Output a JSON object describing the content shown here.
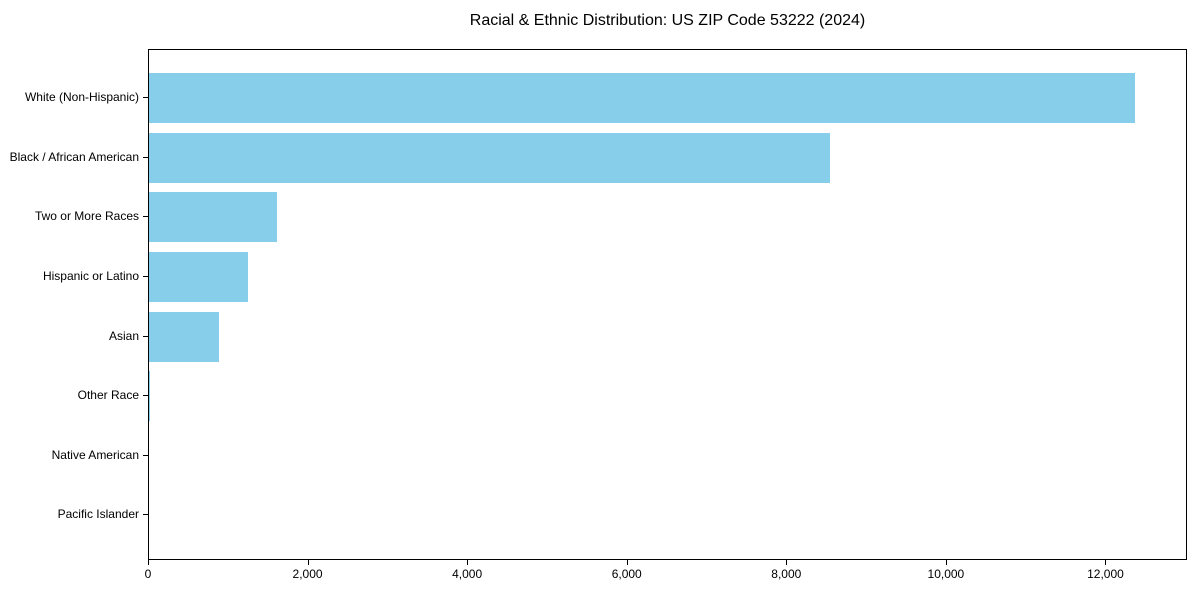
{
  "title": "Racial & Ethnic Distribution: US ZIP Code 53222 (2024)",
  "chart_data": {
    "type": "bar",
    "orientation": "horizontal",
    "title": "Racial & Ethnic Distribution: US ZIP Code 53222 (2024)",
    "categories": [
      "White (Non-Hispanic)",
      "Black / African American",
      "Two or More Races",
      "Hispanic or Latino",
      "Asian",
      "Other Race",
      "Native American",
      "Pacific Islander"
    ],
    "values": [
      12360,
      8530,
      1600,
      1245,
      880,
      15,
      0,
      0
    ],
    "xlabel": "",
    "ylabel": "",
    "xlim": [
      0,
      13022
    ],
    "x_ticks": [
      0,
      2000,
      4000,
      6000,
      8000,
      10000,
      12000
    ],
    "x_tick_labels": [
      "0",
      "2,000",
      "4,000",
      "6,000",
      "8,000",
      "10,000",
      "12,000"
    ],
    "bar_color": "#87CEEB",
    "grid": false,
    "legend": "none",
    "frame": "full-box"
  },
  "colors": {
    "bar": "#87CEEB",
    "axis": "#000000",
    "text": "#000000",
    "background": "#ffffff"
  }
}
